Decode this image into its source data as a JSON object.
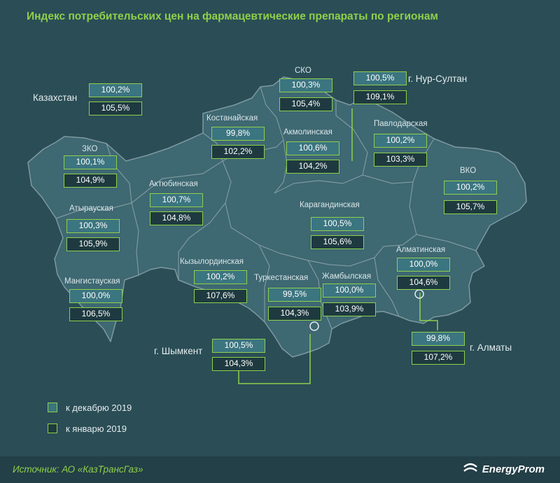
{
  "title": "Индекс потребительских цен на фармацевтические препараты по регионам",
  "country": {
    "name": "Казахстан",
    "dec": "100,2%",
    "jan": "105,5%"
  },
  "regions": [
    {
      "name": "ЗКО",
      "dec": "100,1%",
      "jan": "104,9%"
    },
    {
      "name": "Атырауская",
      "dec": "100,3%",
      "jan": "105,9%"
    },
    {
      "name": "Мангистауская",
      "dec": "100,0%",
      "jan": "106,5%"
    },
    {
      "name": "Актюбинская",
      "dec": "100,7%",
      "jan": "104,8%"
    },
    {
      "name": "Костанайская",
      "dec": "99,8%",
      "jan": "102,2%"
    },
    {
      "name": "СКО",
      "dec": "100,3%",
      "jan": "105,4%"
    },
    {
      "name": "Акмолинская",
      "dec": "100,6%",
      "jan": "104,2%"
    },
    {
      "name": "Павлодарская",
      "dec": "100,2%",
      "jan": "103,3%"
    },
    {
      "name": "ВКО",
      "dec": "100,2%",
      "jan": "105,7%"
    },
    {
      "name": "Карагандинская",
      "dec": "100,5%",
      "jan": "105,6%"
    },
    {
      "name": "Кызылординская",
      "dec": "100,2%",
      "jan": "107,6%"
    },
    {
      "name": "Туркестанская",
      "dec": "99,5%",
      "jan": "104,3%"
    },
    {
      "name": "Жамбылская",
      "dec": "100,0%",
      "jan": "103,9%"
    },
    {
      "name": "Алматинская",
      "dec": "100,0%",
      "jan": "104,6%"
    }
  ],
  "cities": [
    {
      "name": "г. Нур-Султан",
      "dec": "100,5%",
      "jan": "109,1%"
    },
    {
      "name": "г. Шымкент",
      "dec": "100,5%",
      "jan": "104,3%"
    },
    {
      "name": "г. Алматы",
      "dec": "99,8%",
      "jan": "107,2%"
    }
  ],
  "legend": {
    "dec_label": "к декабрю 2019",
    "jan_label": "к январю 2019"
  },
  "source": "Источник: АО «КазТрансГаз»",
  "brand": "EnergyProm",
  "colors": {
    "accent": "#8ed04b",
    "background": "#2b4d56",
    "map_fill": "#3e6872",
    "dec_box": "#3b7580",
    "jan_box": "#1e3a40"
  }
}
